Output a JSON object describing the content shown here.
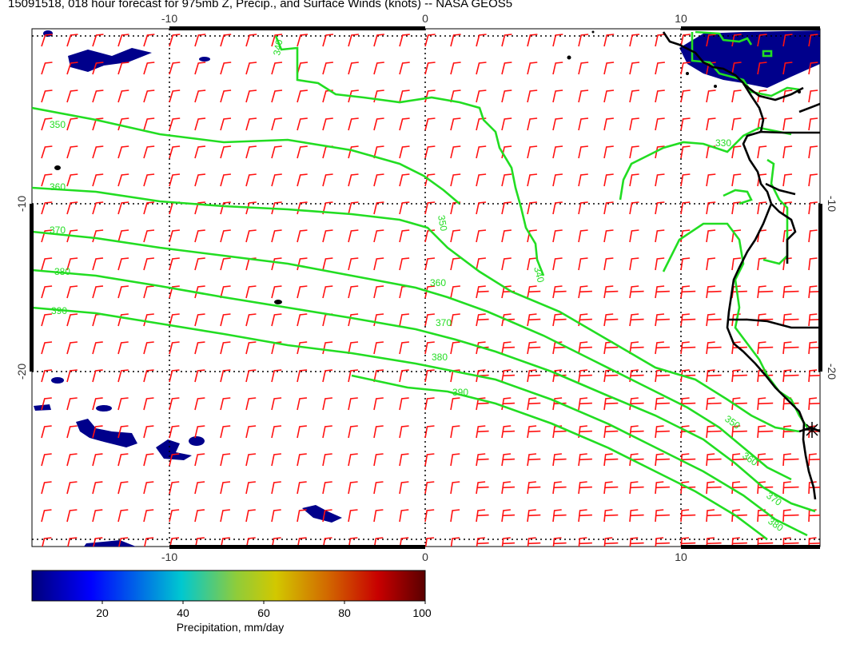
{
  "title": "15091518, 018 hour forecast for 975mb Z, Precip., and Surface Winds (knots) -- NASA GEOS5",
  "map": {
    "x_ticks": [
      "-10",
      "0",
      "10"
    ],
    "y_ticks": [
      "-10",
      "-20"
    ],
    "contour_color": "#22dd22",
    "wind_barb_color": "#ff1111",
    "coastline_color": "#000000",
    "grid_style": "dotted",
    "contours": [
      {
        "level": "330",
        "label": "330"
      },
      {
        "level": "340",
        "label": "340"
      },
      {
        "level": "350",
        "label": "350"
      },
      {
        "level": "360",
        "label": "360"
      },
      {
        "level": "370",
        "label": "370"
      },
      {
        "level": "380",
        "label": "380"
      },
      {
        "level": "390",
        "label": "390"
      }
    ]
  },
  "colorbar": {
    "label": "Precipitation, mm/day",
    "ticks": [
      "20",
      "40",
      "60",
      "80",
      "100"
    ],
    "colors": [
      "#00007a",
      "#0000ff",
      "#00c8d0",
      "#8fcc3a",
      "#d2c800",
      "#d26a00",
      "#c80000",
      "#5a0000"
    ]
  }
}
